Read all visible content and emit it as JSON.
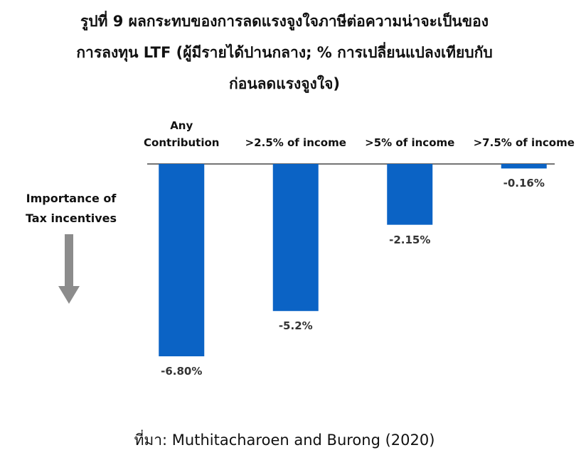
{
  "chart_data": {
    "type": "bar",
    "title": [
      "รูปที่ 9 ผลกระทบของการลดแรงจูงใจภาษีต่อความน่าจะเป็นของ",
      "การลงทุน LTF (ผู้มีรายได้ปานกลาง; % การเปลี่ยนแปลงเทียบกับ",
      "ก่อนลดแรงจูงใจ)"
    ],
    "categories": [
      "Any\nContribution",
      ">2.5% of income",
      ">5% of income",
      ">7.5% of income"
    ],
    "values": [
      -6.8,
      -5.2,
      -2.15,
      -0.16
    ],
    "value_labels": [
      "-6.80%",
      "-5.2%",
      "-2.15%",
      "-0.16%"
    ],
    "color": "#0b63c5",
    "annotation": "Importance of\nTax incentives",
    "source": "ที่มา: Muthitacharoen and Burong (2020)"
  }
}
